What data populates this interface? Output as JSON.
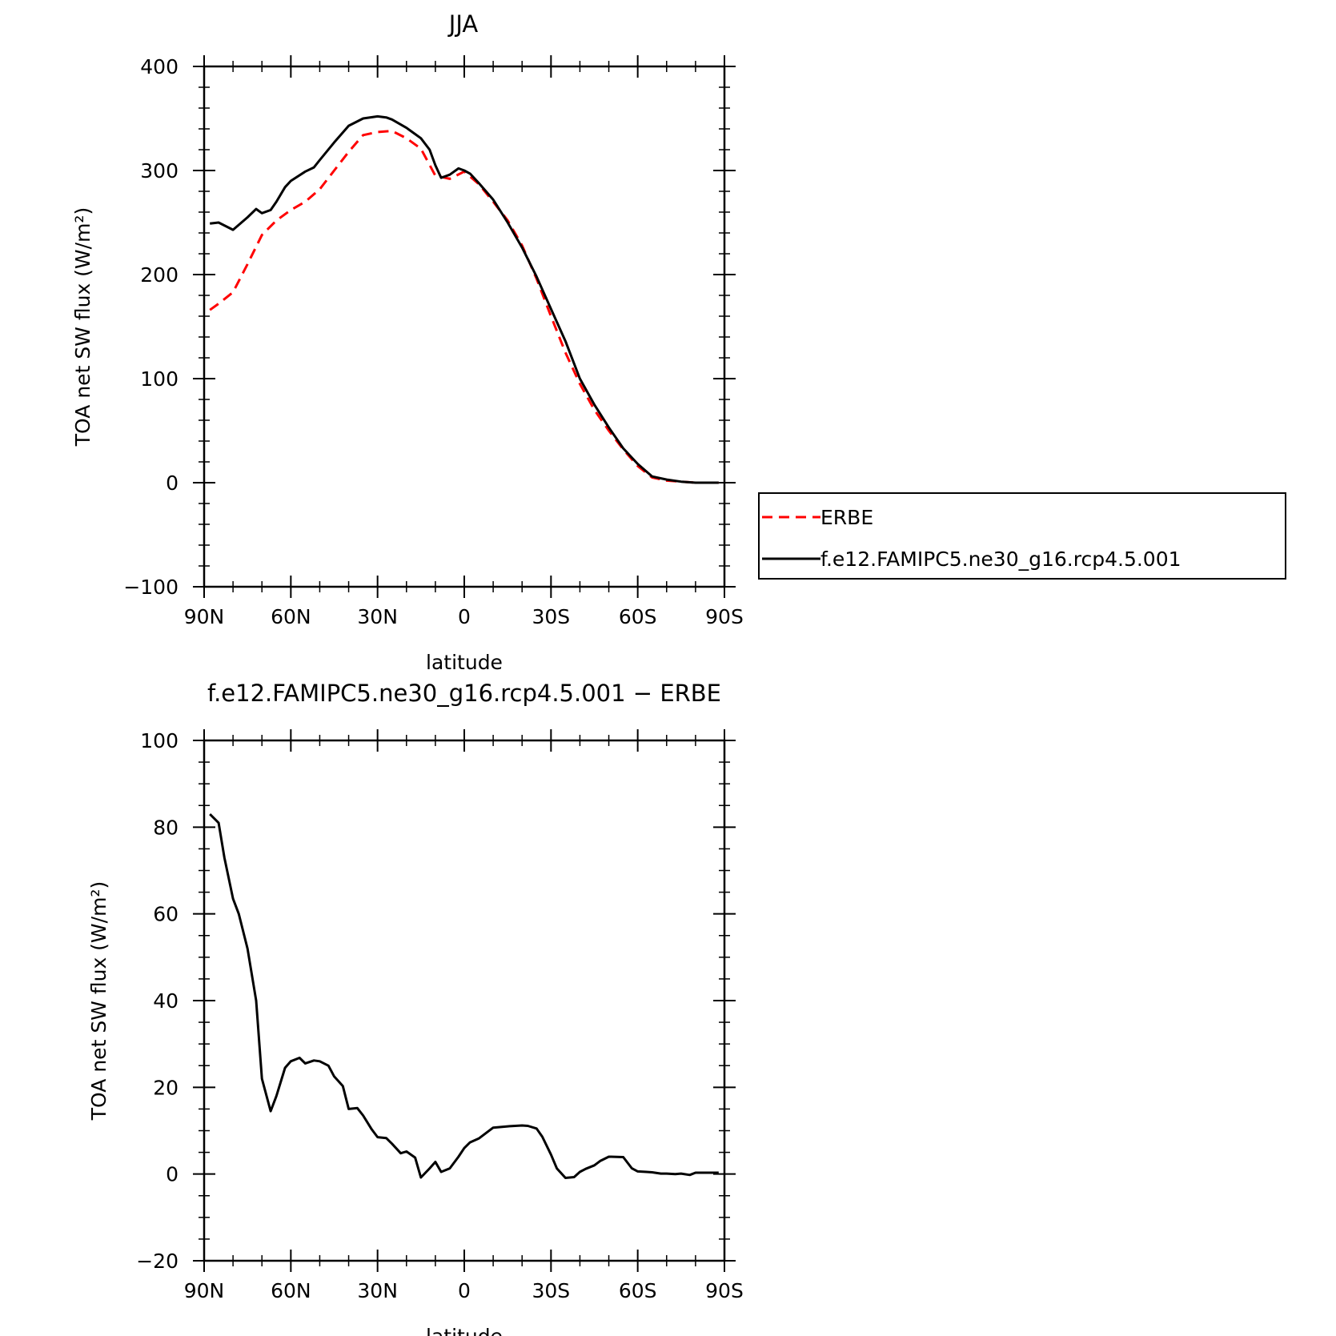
{
  "chart_data": [
    {
      "type": "line",
      "title": "JJA",
      "xlabel": "latitude",
      "ylabel": "TOA net SW flux (W/m²)",
      "xlim": [
        90,
        -90
      ],
      "ylim": [
        -100,
        400
      ],
      "x_tick_values": [
        90,
        60,
        30,
        0,
        -30,
        -60,
        -90
      ],
      "x_tick_labels": [
        "90N",
        "60N",
        "30N",
        "0",
        "30S",
        "60S",
        "90S"
      ],
      "y_ticks": [
        -100,
        0,
        100,
        200,
        300,
        400
      ],
      "y_tick_labels": [
        "−100",
        "0",
        "100",
        "200",
        "300",
        "400"
      ],
      "legend_position": "right of plot",
      "series": [
        {
          "name": "ERBE",
          "color": "#ff0000",
          "dash": "dashed",
          "x": [
            88,
            85,
            80,
            75,
            70,
            65,
            60,
            55,
            50,
            45,
            40,
            35,
            30,
            25,
            20,
            15,
            10,
            5,
            0,
            -5,
            -10,
            -15,
            -20,
            -25,
            -30,
            -35,
            -40,
            -45,
            -50,
            -55,
            -60,
            -65,
            -70,
            -75,
            -80,
            -85,
            -88
          ],
          "y": [
            166,
            172,
            183,
            210,
            238,
            252,
            262,
            270,
            282,
            300,
            318,
            334,
            337,
            338,
            331,
            321,
            295,
            292,
            299,
            287,
            270,
            252,
            228,
            196,
            160,
            125,
            95,
            70,
            50,
            32,
            16,
            5,
            2,
            1,
            0,
            0,
            0
          ]
        },
        {
          "name": "f.e12.FAMIPC5.ne30_g16.rcp4.5.001",
          "color": "#000000",
          "dash": "solid",
          "x": [
            88,
            85,
            80,
            75,
            72,
            70,
            67,
            65,
            62,
            60,
            55,
            52,
            50,
            45,
            40,
            35,
            30,
            27,
            25,
            20,
            17,
            15,
            12,
            10,
            8,
            5,
            2,
            0,
            -2,
            -5,
            -10,
            -15,
            -20,
            -25,
            -30,
            -35,
            -40,
            -45,
            -50,
            -55,
            -60,
            -65,
            -70,
            -75,
            -80,
            -85,
            -88
          ],
          "y": [
            249,
            250,
            243,
            255,
            263,
            259,
            262,
            270,
            284,
            290,
            299,
            303,
            310,
            327,
            343,
            350,
            352,
            351,
            349,
            341,
            335,
            331,
            320,
            305,
            293,
            296,
            302,
            300,
            297,
            288,
            272,
            250,
            226,
            198,
            167,
            136,
            100,
            75,
            53,
            33,
            18,
            6,
            3,
            1,
            0,
            0,
            0
          ]
        }
      ]
    },
    {
      "type": "line",
      "title": "f.e12.FAMIPC5.ne30_g16.rcp4.5.001 − ERBE",
      "xlabel": "latitude",
      "ylabel": "TOA net SW flux (W/m²)",
      "xlim": [
        90,
        -90
      ],
      "ylim": [
        -20,
        100
      ],
      "x_tick_values": [
        90,
        60,
        30,
        0,
        -30,
        -60,
        -90
      ],
      "x_tick_labels": [
        "90N",
        "60N",
        "30N",
        "0",
        "30S",
        "60S",
        "90S"
      ],
      "y_ticks": [
        -20,
        0,
        20,
        40,
        60,
        80,
        100
      ],
      "y_tick_labels": [
        "−20",
        "0",
        "20",
        "40",
        "60",
        "80",
        "100"
      ],
      "series": [
        {
          "color": "#000000",
          "dash": "solid",
          "x": [
            88,
            85,
            83,
            80,
            78,
            75,
            72,
            70,
            67,
            65,
            62,
            60,
            57,
            55,
            52,
            50,
            47,
            45,
            42,
            40,
            37,
            35,
            32,
            30,
            27,
            25,
            22,
            20,
            17,
            15,
            12,
            10,
            8,
            5,
            2,
            0,
            -2,
            -5,
            -10,
            -15,
            -20,
            -22,
            -25,
            -27,
            -30,
            -32,
            -35,
            -38,
            -40,
            -42,
            -45,
            -47,
            -50,
            -55,
            -58,
            -60,
            -63,
            -65,
            -68,
            -70,
            -73,
            -75,
            -78,
            -80,
            -83,
            -85,
            -88
          ],
          "y": [
            83,
            81,
            73,
            63.5,
            60,
            52,
            40,
            22,
            14.5,
            18,
            24.5,
            26,
            26.8,
            25.5,
            26.2,
            26,
            25,
            22.5,
            20.3,
            15,
            15.2,
            13.5,
            10.3,
            8.5,
            8.3,
            7,
            4.8,
            5.2,
            3.8,
            -0.8,
            1.3,
            2.8,
            0.5,
            1.3,
            4,
            6,
            7.3,
            8.2,
            10.7,
            11,
            11.2,
            11.1,
            10.5,
            8.6,
            4.5,
            1.3,
            -0.9,
            -0.7,
            0.5,
            1.2,
            2,
            3,
            4,
            3.9,
            1.3,
            0.6,
            0.5,
            0.4,
            0.1,
            0.1,
            0,
            0.1,
            -0.2,
            0.3,
            0.3,
            0.3,
            0.3
          ]
        }
      ]
    }
  ]
}
